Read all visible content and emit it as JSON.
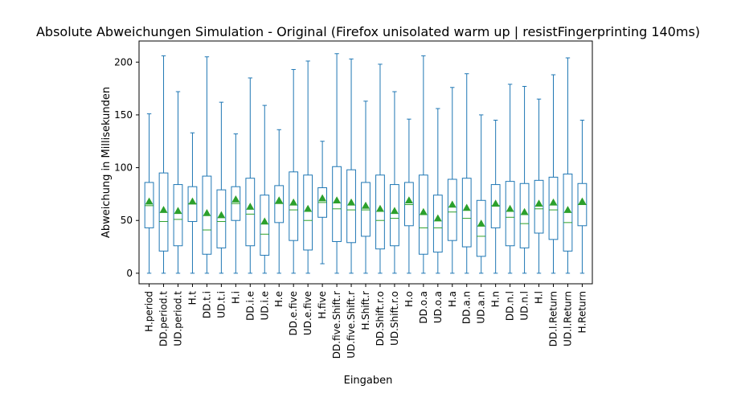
{
  "chart_data": {
    "type": "boxplot",
    "title": "Absolute Abweichungen Simulation - Original (Firefox unisolated warm up | resistFingerprinting 140ms)",
    "xlabel": "Eingaben",
    "ylabel": "Abweichung in Millisekunden",
    "ylim": [
      -10,
      220
    ],
    "yticks": [
      0,
      50,
      100,
      150,
      200
    ],
    "grid": false,
    "colors": {
      "box": "#1f77b4",
      "median": "#2ca02c",
      "mean": "#2ca02c"
    },
    "categories": [
      "H.period",
      "DD.period.t",
      "UD.period.t",
      "H.t",
      "DD.t.i",
      "UD.t.i",
      "H.i",
      "DD.i.e",
      "UD.i.e",
      "H.e",
      "DD.e.five",
      "UD.e.five",
      "H.five",
      "DD.five.Shift.r",
      "UD.five.Shift.r",
      "H.Shift.r",
      "DD.Shift.r.o",
      "UD.Shift.r.o",
      "H.o",
      "DD.o.a",
      "UD.o.a",
      "H.a",
      "DD.a.n",
      "UD.a.n",
      "H.n",
      "DD.n.l",
      "UD.n.l",
      "H.l",
      "DD.l.Return",
      "UD.l.Return",
      "H.Return"
    ],
    "boxes": [
      {
        "whislo": 0,
        "q1": 43,
        "med": 64,
        "q3": 86,
        "whishi": 151,
        "mean": 68
      },
      {
        "whislo": 0,
        "q1": 21,
        "med": 49,
        "q3": 95,
        "whishi": 206,
        "mean": 60
      },
      {
        "whislo": 0,
        "q1": 26,
        "med": 51,
        "q3": 84,
        "whishi": 172,
        "mean": 59
      },
      {
        "whislo": 0,
        "q1": 49,
        "med": 66,
        "q3": 82,
        "whishi": 133,
        "mean": 68
      },
      {
        "whislo": 0,
        "q1": 18,
        "med": 41,
        "q3": 92,
        "whishi": 205,
        "mean": 57
      },
      {
        "whislo": 0,
        "q1": 24,
        "med": 49,
        "q3": 79,
        "whishi": 162,
        "mean": 55
      },
      {
        "whislo": 0,
        "q1": 50,
        "med": 66,
        "q3": 82,
        "whishi": 132,
        "mean": 70
      },
      {
        "whislo": 0,
        "q1": 26,
        "med": 56,
        "q3": 90,
        "whishi": 185,
        "mean": 63
      },
      {
        "whislo": 0,
        "q1": 17,
        "med": 37,
        "q3": 74,
        "whishi": 159,
        "mean": 49
      },
      {
        "whislo": 0,
        "q1": 48,
        "med": 66,
        "q3": 83,
        "whishi": 136,
        "mean": 69
      },
      {
        "whislo": 0,
        "q1": 31,
        "med": 60,
        "q3": 96,
        "whishi": 193,
        "mean": 67
      },
      {
        "whislo": 0,
        "q1": 22,
        "med": 50,
        "q3": 93,
        "whishi": 201,
        "mean": 61
      },
      {
        "whislo": 9,
        "q1": 53,
        "med": 67,
        "q3": 81,
        "whishi": 125,
        "mean": 71
      },
      {
        "whislo": 0,
        "q1": 30,
        "med": 61,
        "q3": 101,
        "whishi": 208,
        "mean": 69
      },
      {
        "whislo": 0,
        "q1": 29,
        "med": 60,
        "q3": 98,
        "whishi": 203,
        "mean": 67
      },
      {
        "whislo": 0,
        "q1": 35,
        "med": 60,
        "q3": 86,
        "whishi": 163,
        "mean": 64
      },
      {
        "whislo": 0,
        "q1": 23,
        "med": 50,
        "q3": 93,
        "whishi": 198,
        "mean": 61
      },
      {
        "whislo": 0,
        "q1": 26,
        "med": 52,
        "q3": 84,
        "whishi": 172,
        "mean": 59
      },
      {
        "whislo": 0,
        "q1": 45,
        "med": 65,
        "q3": 86,
        "whishi": 146,
        "mean": 69
      },
      {
        "whislo": 0,
        "q1": 18,
        "med": 43,
        "q3": 93,
        "whishi": 206,
        "mean": 58
      },
      {
        "whislo": 0,
        "q1": 20,
        "med": 43,
        "q3": 74,
        "whishi": 156,
        "mean": 52
      },
      {
        "whislo": 0,
        "q1": 31,
        "med": 58,
        "q3": 89,
        "whishi": 176,
        "mean": 65
      },
      {
        "whislo": 0,
        "q1": 25,
        "med": 52,
        "q3": 90,
        "whishi": 189,
        "mean": 62
      },
      {
        "whislo": 0,
        "q1": 16,
        "med": 35,
        "q3": 69,
        "whishi": 150,
        "mean": 47
      },
      {
        "whislo": 0,
        "q1": 43,
        "med": 64,
        "q3": 84,
        "whishi": 145,
        "mean": 66
      },
      {
        "whislo": 0,
        "q1": 26,
        "med": 53,
        "q3": 87,
        "whishi": 179,
        "mean": 61
      },
      {
        "whislo": 0,
        "q1": 24,
        "med": 47,
        "q3": 85,
        "whishi": 177,
        "mean": 58
      },
      {
        "whislo": 0,
        "q1": 38,
        "med": 61,
        "q3": 88,
        "whishi": 165,
        "mean": 66
      },
      {
        "whislo": 0,
        "q1": 32,
        "med": 60,
        "q3": 91,
        "whishi": 188,
        "mean": 67
      },
      {
        "whislo": 0,
        "q1": 21,
        "med": 48,
        "q3": 94,
        "whishi": 204,
        "mean": 60
      },
      {
        "whislo": 0,
        "q1": 45,
        "med": 65,
        "q3": 85,
        "whishi": 145,
        "mean": 68
      }
    ]
  }
}
